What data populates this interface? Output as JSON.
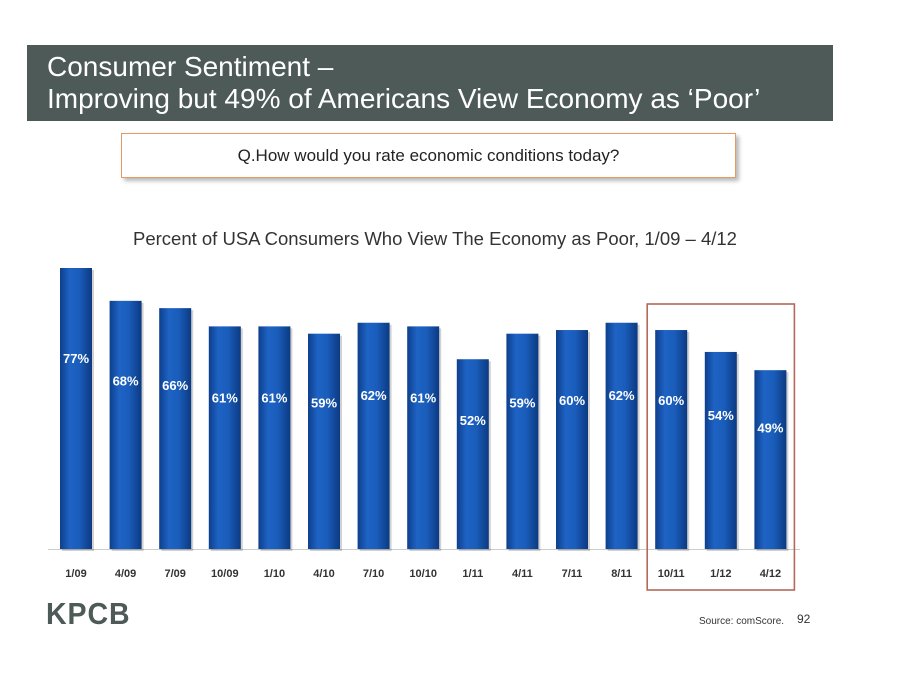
{
  "header": {
    "title_line1": "Consumer Sentiment –",
    "title_line2": "Improving but 49% of Americans View Economy as ‘Poor’"
  },
  "question": "Q.How would you rate economic conditions today?",
  "footer": {
    "logo": "KPCB",
    "source": "Source: comScore.",
    "page_number": "92"
  },
  "colors": {
    "title_bar": "#4d5a57",
    "bar": "#1a5dbb",
    "highlight_box": "#b5685a",
    "question_border": "#e39a63"
  },
  "chart_data": {
    "type": "bar",
    "title": "Percent of USA Consumers Who View The Economy as Poor, 1/09 – 4/12",
    "categories": [
      "1/09",
      "4/09",
      "7/09",
      "10/09",
      "1/10",
      "4/10",
      "7/10",
      "10/10",
      "1/11",
      "4/11",
      "7/11",
      "8/11",
      "10/11",
      "1/12",
      "4/12"
    ],
    "values": [
      77,
      68,
      66,
      61,
      61,
      59,
      62,
      61,
      52,
      59,
      60,
      62,
      60,
      54,
      49
    ],
    "data_labels": [
      "77%",
      "68%",
      "66%",
      "61%",
      "61%",
      "59%",
      "62%",
      "61%",
      "52%",
      "59%",
      "60%",
      "62%",
      "60%",
      "54%",
      "49%"
    ],
    "highlighted_categories": [
      "10/11",
      "1/12",
      "4/12"
    ],
    "ylim": [
      0,
      77
    ],
    "xlabel": "",
    "ylabel": "",
    "grid": false,
    "legend": "none"
  }
}
